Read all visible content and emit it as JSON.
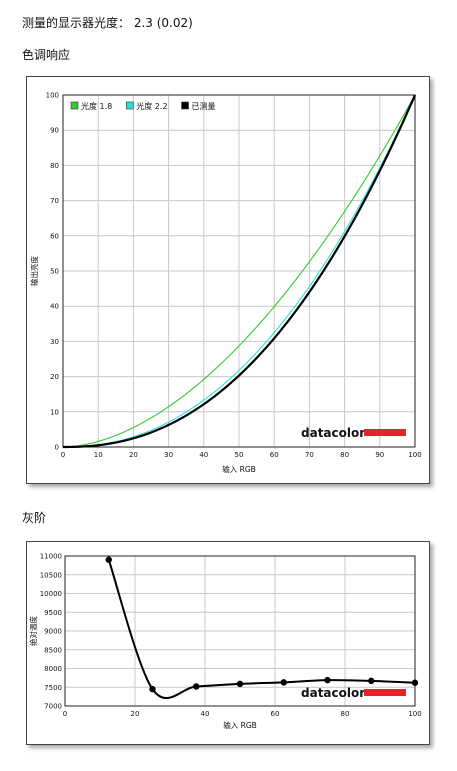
{
  "header": {
    "gamma_line": "测量的显示器光度： 2.3 (0.02)"
  },
  "sections": {
    "tone_title": "色调响应",
    "gray_title": "灰阶"
  },
  "brand": {
    "logo": "datacolor"
  },
  "colors": {
    "gamma18": "#33cc33",
    "gamma22": "#33dddd",
    "measured": "#000000",
    "grid": "#c8c8c8",
    "logo_bar": "#e8222a"
  },
  "chart_data": [
    {
      "type": "line",
      "xlabel": "输入 RGB",
      "ylabel": "输出亮度",
      "xlim": [
        0,
        100
      ],
      "ylim": [
        0,
        100
      ],
      "xticks": [
        0,
        10,
        20,
        30,
        40,
        50,
        60,
        70,
        80,
        90,
        100
      ],
      "yticks": [
        0,
        10,
        20,
        30,
        40,
        50,
        60,
        70,
        80,
        90,
        100
      ],
      "grid": true,
      "legend": "top-left",
      "series": [
        {
          "name": "光度 1.8",
          "color_key": "gamma18",
          "gamma": 1.8,
          "x": [
            0,
            10,
            20,
            30,
            40,
            50,
            60,
            70,
            80,
            90,
            100
          ],
          "y": [
            0,
            1.6,
            5.5,
            11.5,
            19.2,
            28.7,
            39.8,
            52.6,
            66.9,
            82.7,
            100
          ]
        },
        {
          "name": "光度 2.2",
          "color_key": "gamma22",
          "gamma": 2.2,
          "x": [
            0,
            10,
            20,
            30,
            40,
            50,
            60,
            70,
            80,
            90,
            100
          ],
          "y": [
            0,
            0.6,
            2.9,
            7.1,
            13.3,
            21.8,
            32.5,
            45.6,
            61.2,
            79.3,
            100
          ]
        },
        {
          "name": "已测量",
          "color_key": "measured",
          "gamma": 2.3,
          "bold": true,
          "x": [
            0,
            10,
            20,
            30,
            40,
            50,
            60,
            70,
            80,
            90,
            100
          ],
          "y": [
            0,
            0.5,
            2.5,
            6.3,
            12.2,
            20.3,
            30.9,
            44.0,
            59.9,
            78.4,
            100
          ]
        }
      ]
    },
    {
      "type": "line",
      "xlabel": "输入 RGB",
      "ylabel": "绝对温度",
      "xlim": [
        0,
        100
      ],
      "ylim": [
        7000,
        11000
      ],
      "xticks": [
        0,
        20,
        40,
        60,
        80,
        100
      ],
      "yticks": [
        7000,
        7500,
        8000,
        8500,
        9000,
        9500,
        10000,
        10500,
        11000
      ],
      "grid": true,
      "series": [
        {
          "color_key": "measured",
          "x": [
            12.5,
            25,
            37.5,
            50,
            62.5,
            75,
            87.5,
            100
          ],
          "y": [
            10900,
            7450,
            7520,
            7590,
            7630,
            7690,
            7670,
            7620
          ]
        }
      ]
    }
  ]
}
